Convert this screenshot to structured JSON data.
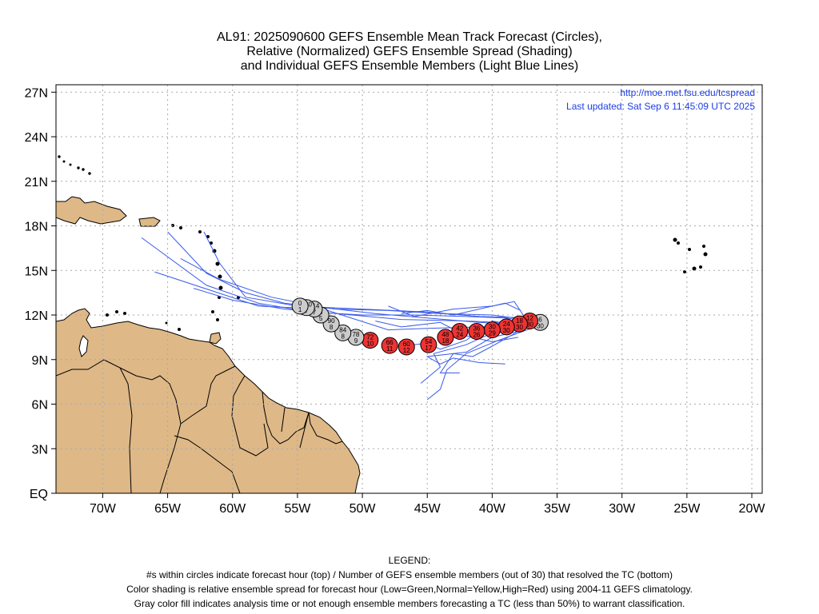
{
  "title": {
    "line1": "AL91: 2025090600 GEFS Ensemble Mean Track Forecast (Circles),",
    "line2": "Relative (Normalized) GEFS Ensemble Spread (Shading)",
    "line3": "and Individual GEFS Ensemble Members (Light Blue Lines)"
  },
  "credit": {
    "url": "http://moe.met.fsu.edu/tcspread",
    "updated": "Last updated: Sat Sep 6 11:45:09 UTC 2025"
  },
  "axes": {
    "lat_labels": [
      "27N",
      "24N",
      "21N",
      "18N",
      "15N",
      "12N",
      "9N",
      "6N",
      "3N",
      "EQ"
    ],
    "lat_values": [
      27,
      24,
      21,
      18,
      15,
      12,
      9,
      6,
      3,
      0
    ],
    "lon_labels": [
      "70W",
      "65W",
      "60W",
      "55W",
      "50W",
      "45W",
      "40W",
      "35W",
      "30W",
      "25W",
      "20W"
    ],
    "lon_values": [
      -70,
      -65,
      -60,
      -55,
      -50,
      -45,
      -40,
      -35,
      -30,
      -25,
      -20
    ],
    "lon_range": [
      -73.6,
      -19.2
    ],
    "lat_range": [
      0,
      27.5
    ],
    "grid": "dotted"
  },
  "colors": {
    "land": "#deb887",
    "member_tracks": "#3b5bea",
    "gray_circle": "#cccccc",
    "red_circle": "#ee3333",
    "credit_text": "#1d3ee6"
  },
  "mean_track": [
    {
      "lon": -54.8,
      "lat": 12.6,
      "hour": "0",
      "members": "1",
      "color": "gray"
    },
    {
      "lon": -54.3,
      "lat": 12.5,
      "hour": "120",
      "members": "7",
      "color": "gray"
    },
    {
      "lon": -53.7,
      "lat": 12.4,
      "hour": "114",
      "members": "7",
      "color": "gray"
    },
    {
      "lon": -53.2,
      "lat": 12.0,
      "hour": "6",
      "members": "5",
      "color": "gray"
    },
    {
      "lon": -52.4,
      "lat": 11.4,
      "hour": "90",
      "members": "8",
      "color": "gray"
    },
    {
      "lon": -51.5,
      "lat": 10.8,
      "hour": "84",
      "members": "8",
      "color": "gray"
    },
    {
      "lon": -50.5,
      "lat": 10.5,
      "hour": "78",
      "members": "9",
      "color": "gray"
    },
    {
      "lon": -49.4,
      "lat": 10.3,
      "hour": "72",
      "members": "10",
      "color": "red"
    },
    {
      "lon": -47.9,
      "lat": 9.95,
      "hour": "66",
      "members": "11",
      "color": "red"
    },
    {
      "lon": -46.6,
      "lat": 9.85,
      "hour": "60",
      "members": "12",
      "color": "red"
    },
    {
      "lon": -44.9,
      "lat": 10.0,
      "hour": "54",
      "members": "17",
      "color": "red"
    },
    {
      "lon": -43.6,
      "lat": 10.5,
      "hour": "48",
      "members": "18",
      "color": "red"
    },
    {
      "lon": -42.5,
      "lat": 10.9,
      "hour": "42",
      "members": "24",
      "color": "red"
    },
    {
      "lon": -41.2,
      "lat": 10.9,
      "hour": "36",
      "members": "26",
      "color": "red"
    },
    {
      "lon": -40.0,
      "lat": 11.0,
      "hour": "30",
      "members": "29",
      "color": "red"
    },
    {
      "lon": -38.9,
      "lat": 11.2,
      "hour": "24",
      "members": "30",
      "color": "red"
    },
    {
      "lon": -37.9,
      "lat": 11.4,
      "hour": "18",
      "members": "30",
      "color": "red"
    },
    {
      "lon": -37.1,
      "lat": 11.6,
      "hour": "12",
      "members": "30",
      "color": "red"
    },
    {
      "lon": -36.3,
      "lat": 11.5,
      "hour": "6",
      "members": "30",
      "color": "gray"
    }
  ],
  "member_tracks": [
    [
      [
        -36.5,
        11.5
      ],
      [
        -39,
        11.8
      ],
      [
        -42,
        11.9
      ],
      [
        -46,
        12.0
      ],
      [
        -50,
        12.0
      ],
      [
        -54,
        12.2
      ],
      [
        -58,
        12.8
      ],
      [
        -62,
        14.0
      ],
      [
        -67,
        17.2
      ]
    ],
    [
      [
        -36.5,
        11.6
      ],
      [
        -40,
        12.0
      ],
      [
        -44,
        12.1
      ],
      [
        -48,
        12.3
      ],
      [
        -52,
        12.4
      ],
      [
        -56,
        12.8
      ],
      [
        -59,
        13.5
      ],
      [
        -62,
        14.8
      ],
      [
        -65,
        17.6
      ]
    ],
    [
      [
        -37,
        11.3
      ],
      [
        -41,
        11.5
      ],
      [
        -45,
        11.8
      ],
      [
        -49,
        12.1
      ],
      [
        -53,
        12.5
      ],
      [
        -57,
        13.2
      ],
      [
        -61,
        14.4
      ],
      [
        -64,
        15.8
      ]
    ],
    [
      [
        -37,
        11.8
      ],
      [
        -41,
        11.9
      ],
      [
        -45,
        12.2
      ],
      [
        -50,
        12.4
      ],
      [
        -55,
        12.6
      ],
      [
        -59,
        13.2
      ],
      [
        -61,
        15.5
      ],
      [
        -62.2,
        17.6
      ]
    ],
    [
      [
        -37,
        11.4
      ],
      [
        -42,
        11.6
      ],
      [
        -47,
        11.7
      ],
      [
        -52,
        12.1
      ],
      [
        -56,
        12.4
      ],
      [
        -60,
        13.0
      ],
      [
        -63,
        13.8
      ]
    ],
    [
      [
        -37,
        11.2
      ],
      [
        -41,
        11.2
      ],
      [
        -45,
        11.1
      ],
      [
        -48,
        11.0
      ],
      [
        -53,
        12.4
      ],
      [
        -58,
        12.6
      ],
      [
        -66,
        14.9
      ]
    ],
    [
      [
        -37.5,
        11.0
      ],
      [
        -40,
        10.5
      ],
      [
        -42,
        9.5
      ],
      [
        -45,
        9.2
      ],
      [
        -44,
        8.7
      ],
      [
        -43,
        9.1
      ],
      [
        -41,
        8.8
      ],
      [
        -39,
        8.7
      ]
    ],
    [
      [
        -37.5,
        11.3
      ],
      [
        -40,
        10.8
      ],
      [
        -42,
        10.0
      ],
      [
        -44.5,
        9.4
      ],
      [
        -44,
        8.5
      ],
      [
        -45.5,
        7.4
      ]
    ],
    [
      [
        -37,
        11.1
      ],
      [
        -39.5,
        10.3
      ],
      [
        -42,
        9.4
      ],
      [
        -43.5,
        8.3
      ],
      [
        -44,
        7.0
      ],
      [
        -45,
        6.3
      ]
    ],
    [
      [
        -37.8,
        12.3
      ],
      [
        -39,
        12.8
      ],
      [
        -41,
        12.4
      ],
      [
        -43,
        12.0
      ],
      [
        -45,
        12.3
      ],
      [
        -47,
        12.1
      ]
    ],
    [
      [
        -38,
        10.5
      ],
      [
        -40,
        10.2
      ],
      [
        -42,
        10.6
      ],
      [
        -44,
        11.5
      ],
      [
        -47,
        11.2
      ],
      [
        -49,
        11.6
      ]
    ],
    [
      [
        -37.3,
        11.6
      ],
      [
        -38.3,
        12.9
      ],
      [
        -40,
        12.6
      ],
      [
        -43,
        12.4
      ],
      [
        -46,
        11.9
      ],
      [
        -48,
        12.6
      ]
    ],
    [
      [
        -38,
        11.3
      ],
      [
        -40,
        11.6
      ],
      [
        -42,
        10.3
      ],
      [
        -44,
        9.7
      ],
      [
        -45,
        10.1
      ],
      [
        -47,
        9.9
      ]
    ],
    [
      [
        -38,
        10.9
      ],
      [
        -40,
        9.9
      ],
      [
        -41.5,
        9.2
      ],
      [
        -43,
        9.4
      ],
      [
        -44,
        8.1
      ],
      [
        -42.5,
        8.1
      ]
    ]
  ]
}
